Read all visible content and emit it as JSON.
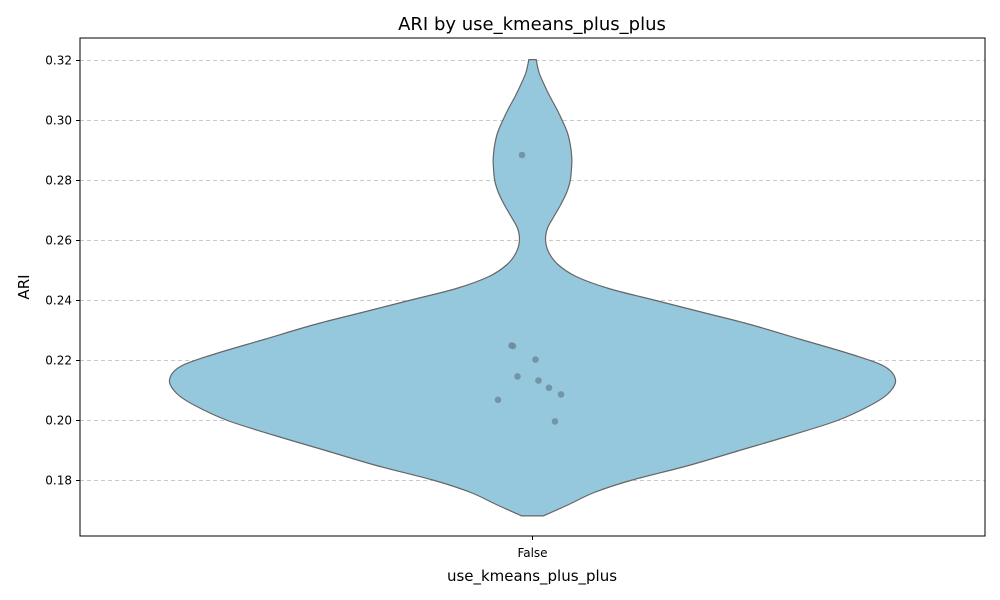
{
  "chart_data": {
    "type": "violin",
    "title": "ARI by use_kmeans_plus_plus",
    "xlabel": "use_kmeans_plus_plus",
    "ylabel": "ARI",
    "categories": [
      "False"
    ],
    "ylim": [
      0.1615,
      0.3275
    ],
    "yticks": [
      0.18,
      0.2,
      0.22,
      0.24,
      0.26,
      0.28,
      0.3,
      0.32
    ],
    "ytick_labels": [
      "0.18",
      "0.20",
      "0.22",
      "0.24",
      "0.26",
      "0.28",
      "0.30",
      "0.32"
    ],
    "grid": "horizontal dashed",
    "colors": {
      "violin_fill": "#95c8dd",
      "violin_edge": "#666666",
      "points": "#6f8c9c"
    },
    "density_profile": [
      [
        0.1682,
        0.03
      ],
      [
        0.172,
        0.1
      ],
      [
        0.176,
        0.17
      ],
      [
        0.18,
        0.27
      ],
      [
        0.185,
        0.43
      ],
      [
        0.19,
        0.57
      ],
      [
        0.195,
        0.71
      ],
      [
        0.2,
        0.84
      ],
      [
        0.205,
        0.93
      ],
      [
        0.209,
        0.98
      ],
      [
        0.2135,
        1.0
      ],
      [
        0.218,
        0.97
      ],
      [
        0.222,
        0.88
      ],
      [
        0.227,
        0.74
      ],
      [
        0.232,
        0.6
      ],
      [
        0.236,
        0.47
      ],
      [
        0.24,
        0.34
      ],
      [
        0.244,
        0.21
      ],
      [
        0.248,
        0.12
      ],
      [
        0.252,
        0.07
      ],
      [
        0.256,
        0.045
      ],
      [
        0.26,
        0.036
      ],
      [
        0.264,
        0.041
      ],
      [
        0.268,
        0.059
      ],
      [
        0.272,
        0.078
      ],
      [
        0.276,
        0.094
      ],
      [
        0.28,
        0.104
      ],
      [
        0.285,
        0.108
      ],
      [
        0.288,
        0.108
      ],
      [
        0.292,
        0.104
      ],
      [
        0.296,
        0.096
      ],
      [
        0.3,
        0.082
      ],
      [
        0.304,
        0.066
      ],
      [
        0.308,
        0.048
      ],
      [
        0.312,
        0.032
      ],
      [
        0.316,
        0.018
      ],
      [
        0.3203,
        0.01
      ]
    ],
    "points": [
      {
        "x_jitter": -0.07,
        "y": 0.2885
      },
      {
        "x_jitter": -0.14,
        "y": 0.225
      },
      {
        "x_jitter": -0.13,
        "y": 0.2248
      },
      {
        "x_jitter": 0.02,
        "y": 0.2203
      },
      {
        "x_jitter": -0.1,
        "y": 0.2147
      },
      {
        "x_jitter": 0.04,
        "y": 0.2133
      },
      {
        "x_jitter": 0.11,
        "y": 0.2109
      },
      {
        "x_jitter": 0.19,
        "y": 0.2087
      },
      {
        "x_jitter": -0.23,
        "y": 0.2069
      },
      {
        "x_jitter": 0.15,
        "y": 0.1997
      }
    ]
  }
}
